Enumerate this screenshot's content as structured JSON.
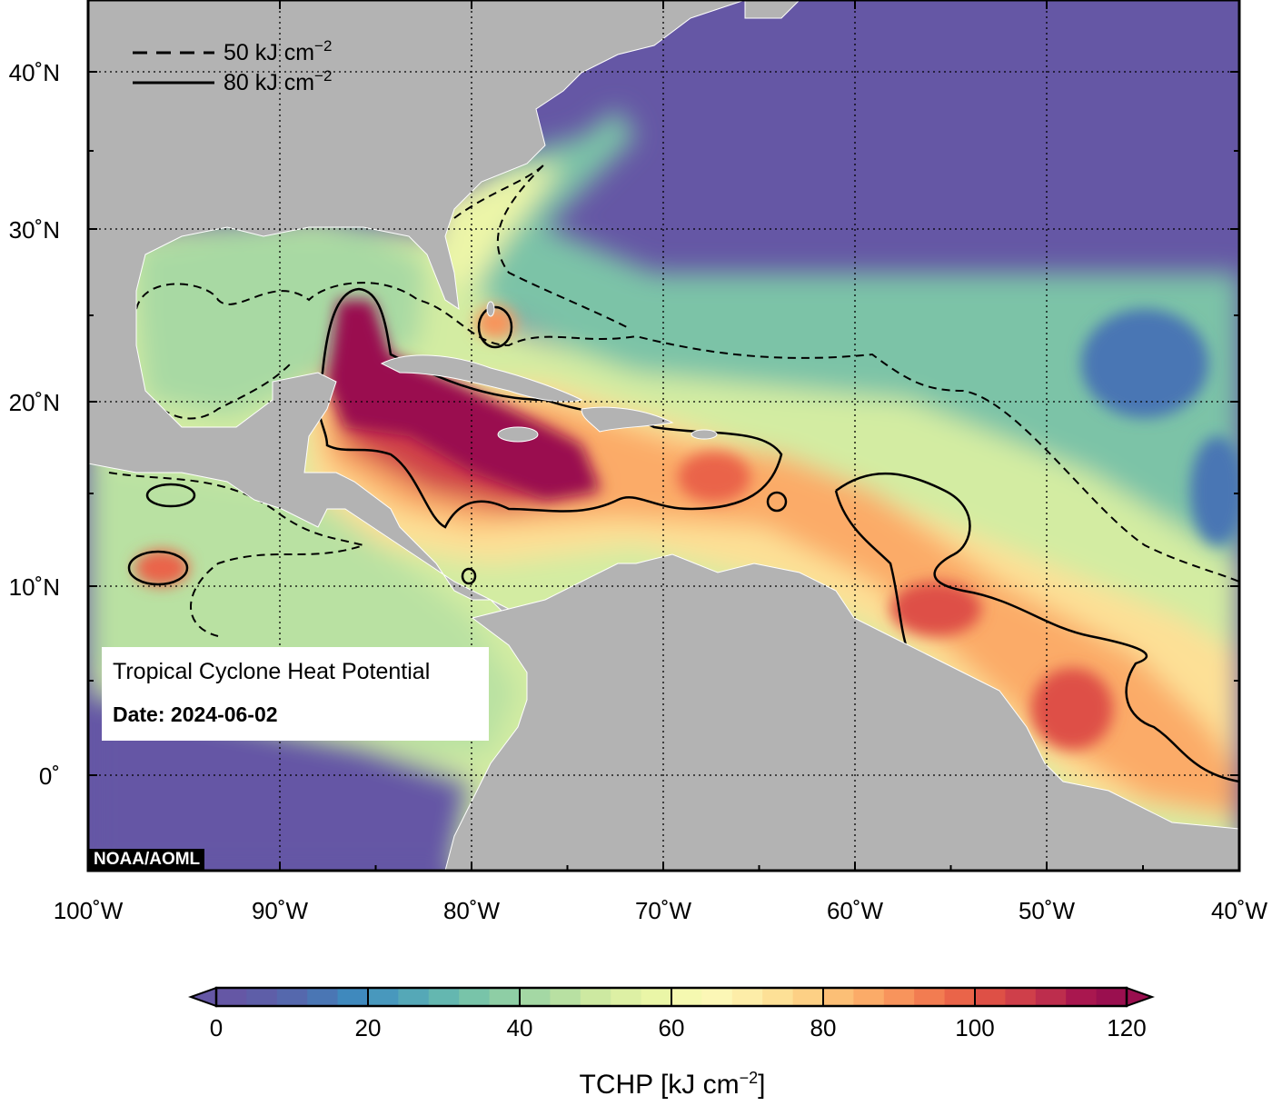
{
  "map": {
    "lon_ticks": [
      "100˚W",
      "90˚W",
      "80˚W",
      "70˚W",
      "60˚W",
      "50˚W",
      "40˚W"
    ],
    "lat_ticks": [
      "40˚N",
      "30˚N",
      "20˚N",
      "10˚N",
      "0˚"
    ],
    "lon_range": [
      -100,
      -40
    ],
    "lat_range": [
      -5.5,
      44
    ],
    "ocean_low_color": "#6557a5",
    "land_color": "#b3b3b3",
    "grid": "dotted"
  },
  "legend": {
    "dashed_label": "50 kJ cm",
    "solid_label": "80 kJ cm",
    "exponent": "−2"
  },
  "info": {
    "title": "Tropical Cyclone Heat Potential",
    "date": "Date: 2024-06-02"
  },
  "credit": "NOAA/AOML",
  "colorbar": {
    "ticks": [
      "0",
      "20",
      "40",
      "60",
      "80",
      "100",
      "120"
    ],
    "title_main": "TCHP [kJ cm",
    "title_exp": "−2",
    "title_end": "]",
    "min": 0,
    "max": 120,
    "colors": [
      "#6557a5",
      "#5e5ea8",
      "#5568ad",
      "#4a76b4",
      "#3f89bd",
      "#4898bd",
      "#55a8b7",
      "#64b7b0",
      "#78c4a9",
      "#8ecea5",
      "#a4d8a4",
      "#b8e0a2",
      "#cde9a1",
      "#ddf0a4",
      "#eaf6a7",
      "#f5f9b0",
      "#fcf7b6",
      "#fdeda8",
      "#fde096",
      "#fdd085",
      "#fcbf76",
      "#fbab68",
      "#f8945c",
      "#f27c51",
      "#ea6449",
      "#de5046",
      "#cf3f4a",
      "#bd2d4d",
      "#a9174f",
      "#9a0f4f"
    ]
  }
}
